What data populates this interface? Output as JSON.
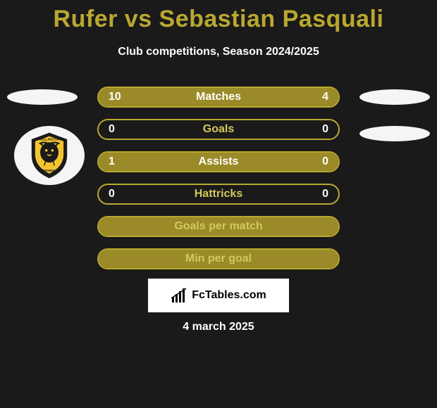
{
  "title": "Rufer vs Sebastian Pasquali",
  "title_color": "#b9a830",
  "subtitle": "Club competitions, Season 2024/2025",
  "date": "4 march 2025",
  "footer_brand": "FcTables.com",
  "colors": {
    "background": "#1a1a1a",
    "border": "#b9a830",
    "fill": "#9a8a28",
    "label_text": "#d4c85a",
    "value_text": "#ffffff",
    "ellipse": "#f5f5f5"
  },
  "badge": {
    "name": "Wellington Phoenix",
    "text_top": "WELLINGTON",
    "text_bottom": "PHOENIX"
  },
  "stats": [
    {
      "label": "Matches",
      "left_value": "10",
      "right_value": "4",
      "left_fill_pct": 71,
      "right_fill_pct": 29,
      "show_values": true,
      "has_extra": false
    },
    {
      "label": "Goals",
      "left_value": "0",
      "right_value": "0",
      "left_fill_pct": 0,
      "right_fill_pct": 0,
      "show_values": true,
      "has_extra": false
    },
    {
      "label": "Assists",
      "left_value": "1",
      "right_value": "0",
      "left_fill_pct": 100,
      "right_fill_pct": 0,
      "show_values": true,
      "has_extra": false
    },
    {
      "label": "Hattricks",
      "left_value": "0",
      "right_value": "0",
      "left_fill_pct": 0,
      "right_fill_pct": 0,
      "show_values": true,
      "has_extra": false
    },
    {
      "label": "Goals per match",
      "left_value": "",
      "right_value": "",
      "left_fill_pct": 100,
      "right_fill_pct": 0,
      "show_values": false,
      "has_extra": false
    },
    {
      "label": "Min per goal",
      "left_value": "",
      "right_value": "",
      "left_fill_pct": 100,
      "right_fill_pct": 0,
      "show_values": false,
      "has_extra": false
    }
  ]
}
